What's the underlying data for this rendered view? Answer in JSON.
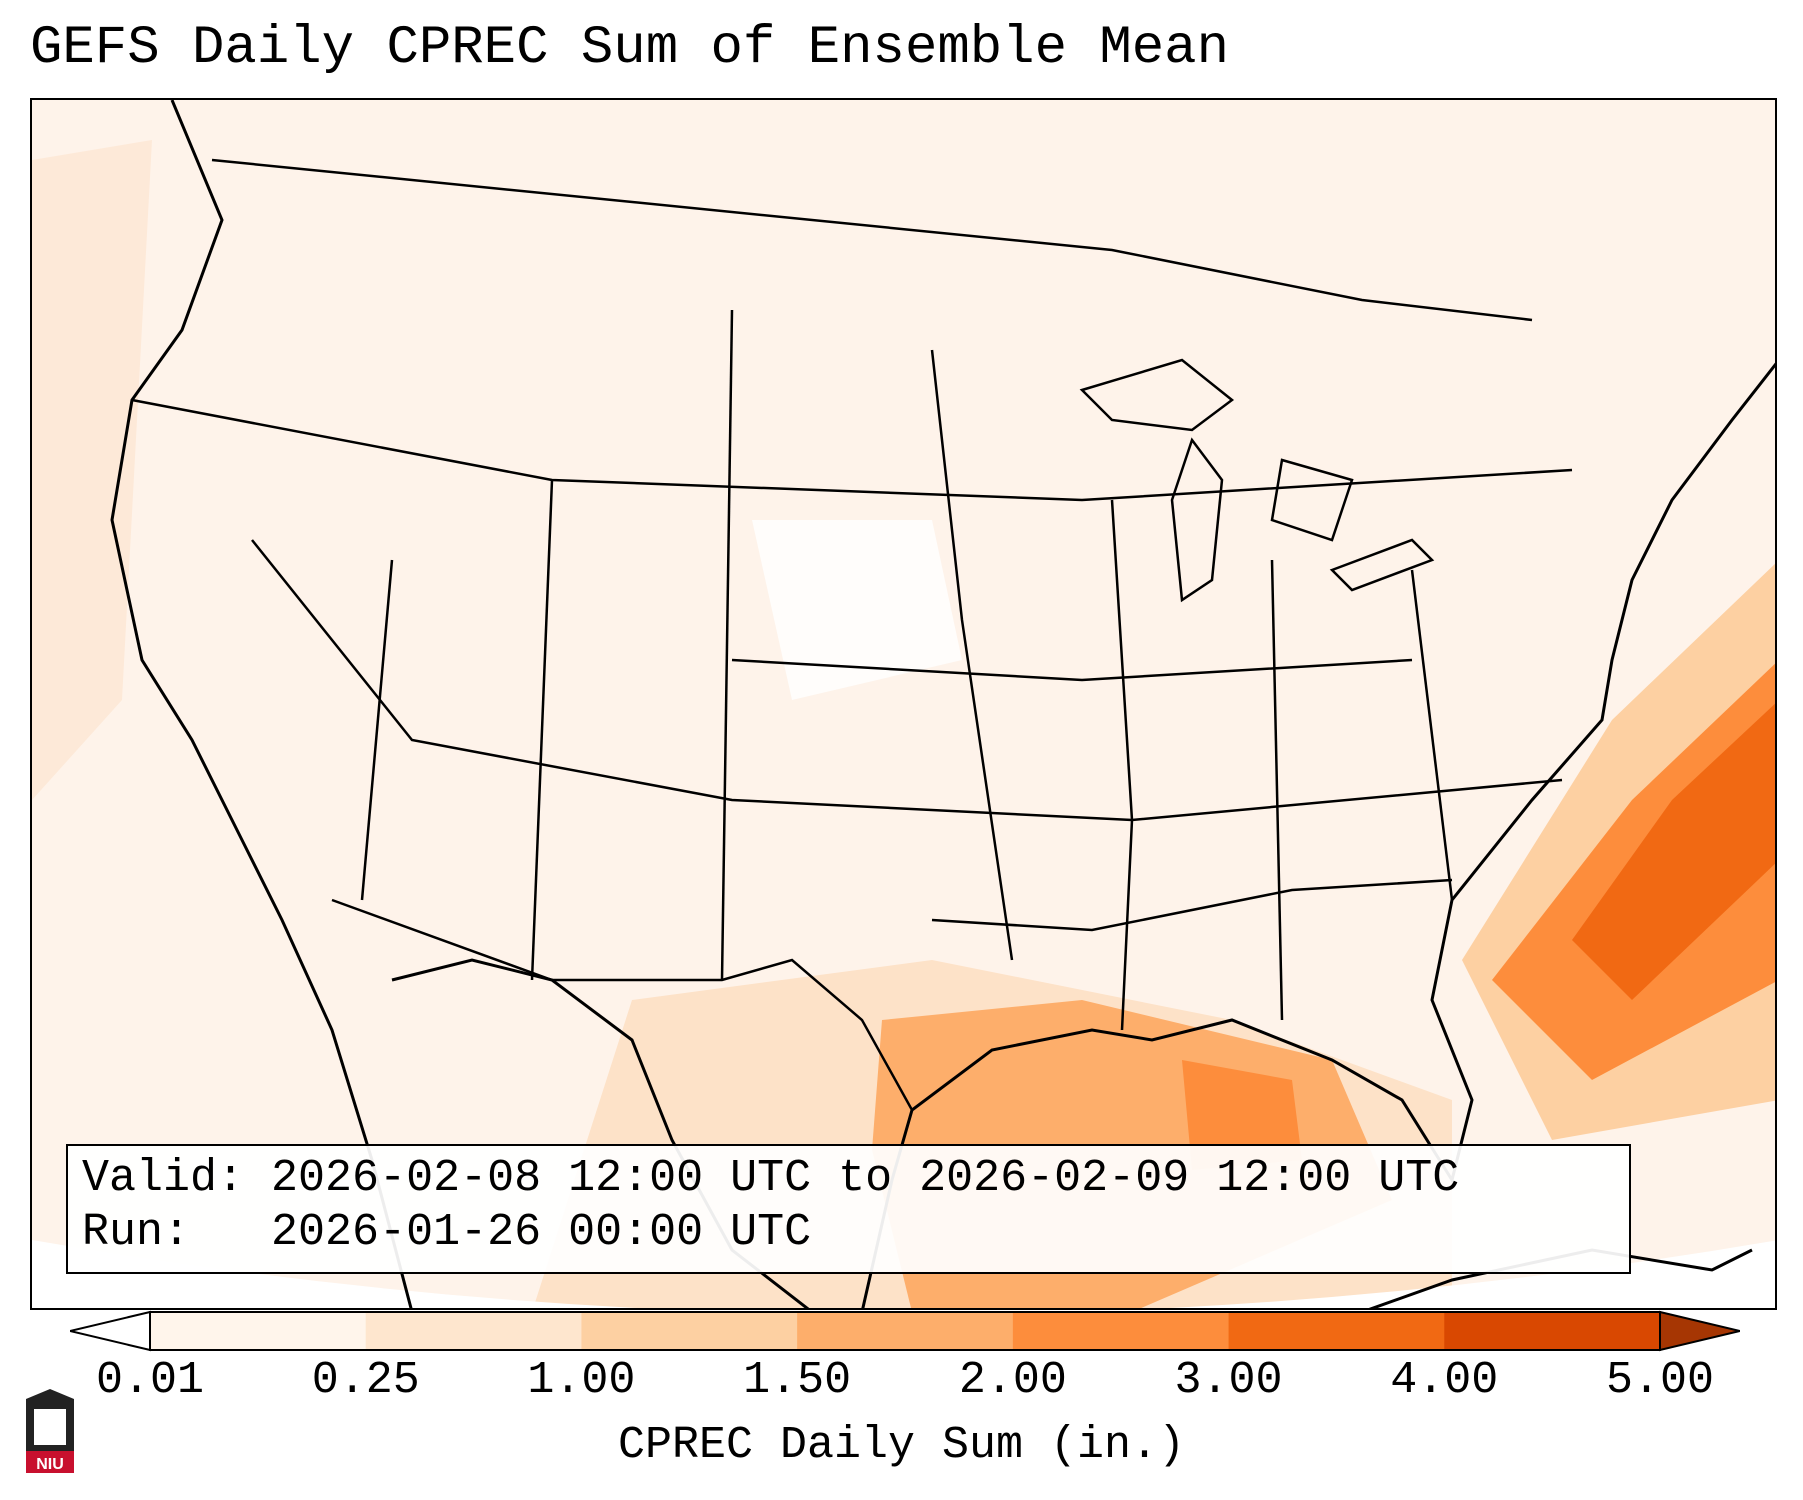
{
  "title": "GEFS Daily CPREC Sum of Ensemble Mean",
  "info": {
    "valid_label": "Valid:",
    "valid_value": "2026-02-08 12:00 UTC to 2026-02-09 12:00 UTC",
    "run_label": "Run:",
    "run_value": "2026-01-26 00:00 UTC"
  },
  "colorbar": {
    "label": "CPREC Daily Sum (in.)",
    "ticks": [
      "0.01",
      "0.25",
      "1.00",
      "1.50",
      "2.00",
      "3.00",
      "4.00",
      "5.00"
    ],
    "colors": [
      "#fff5eb",
      "#fee6ce",
      "#fdd0a2",
      "#fdae6b",
      "#fd8d3c",
      "#f16913",
      "#d94801",
      "#a63603"
    ],
    "under_color": "#ffffff",
    "over_color": "#a63603"
  },
  "logo": {
    "text": "NIU",
    "color": "#c8102e"
  }
}
